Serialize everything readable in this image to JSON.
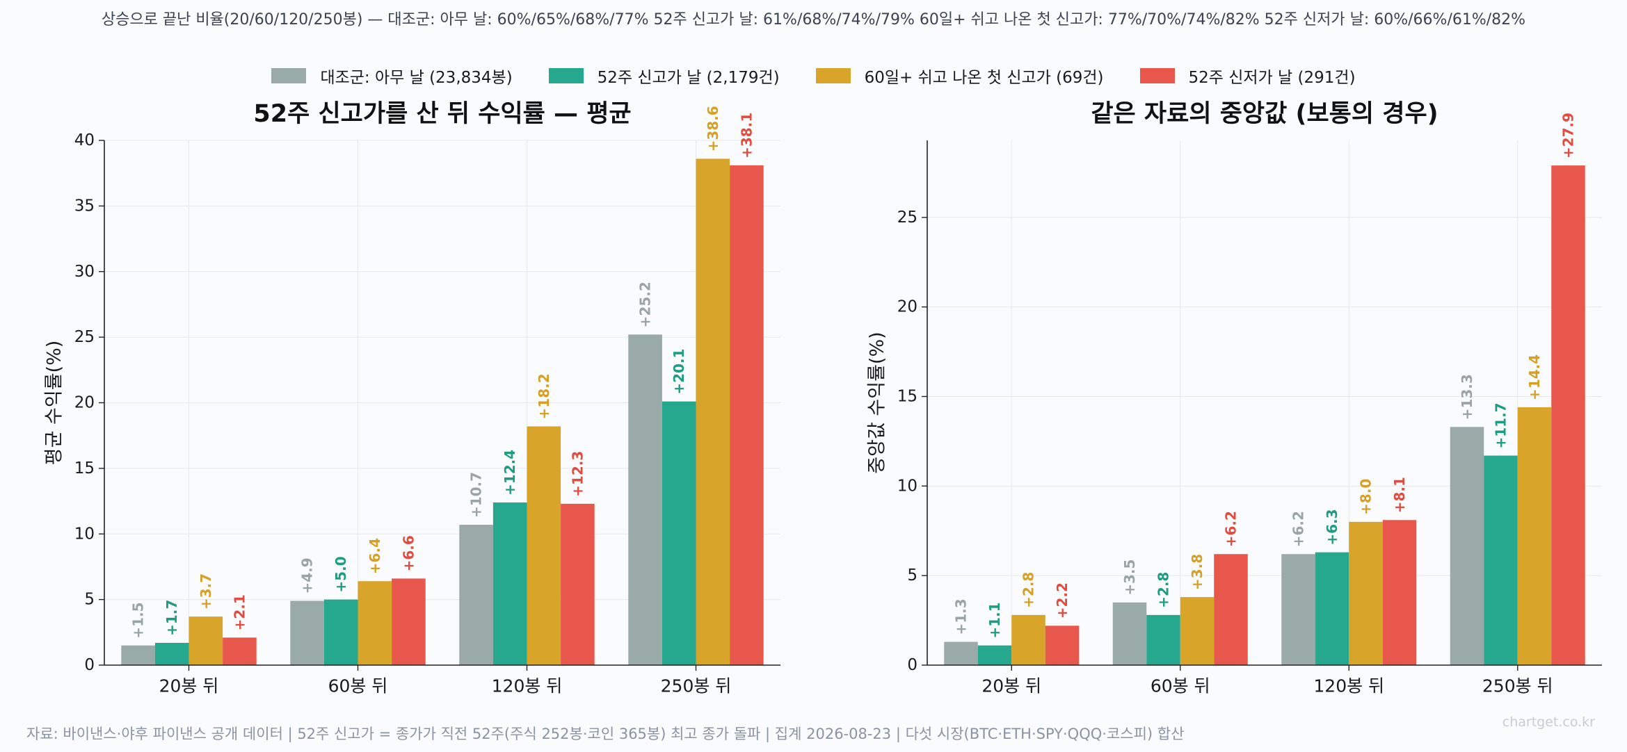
{
  "top_summary": "상승으로 끝난 비율(20/60/120/250봉) — 대조군: 아무 날: 60%/65%/68%/77%   52주 신고가 날: 61%/68%/74%/79%   60일+ 쉬고 나온 첫 신고가: 77%/70%/74%/82%   52주 신저가 날: 60%/66%/61%/82%",
  "legend": [
    {
      "label": "대조군: 아무 날 (23,834봉)",
      "color": "#9aaaa8"
    },
    {
      "label": "52주 신고가 날 (2,179건)",
      "color": "#26a88f"
    },
    {
      "label": "60일+ 쉬고 나온 첫 신고가 (69건)",
      "color": "#d8a52a"
    },
    {
      "label": "52주 신저가 날 (291건)",
      "color": "#e8574b"
    }
  ],
  "footer": "자료: 바이낸스·야후 파이낸스 공개 데이터 | 52주 신고가 = 종가가 직전 52주(주식 252봉·코인 365봉) 최고 종가 돌파 | 집계 2026-08-23 | 다섯 시장(BTC·ETH·SPY·QQQ·코스피) 합산",
  "watermark": "chartget.co.kr",
  "chart_data": [
    {
      "type": "bar",
      "title": "52주 신고가를 산 뒤 수익률 — 평균",
      "ylabel": "평균 수익률(%)",
      "xlabel": "",
      "categories": [
        "20봉 뒤",
        "60봉 뒤",
        "120봉 뒤",
        "250봉 뒤"
      ],
      "ylim": [
        0,
        40
      ],
      "yticks": [
        0,
        5,
        10,
        15,
        20,
        25,
        30,
        35,
        40
      ],
      "grid": true,
      "series": [
        {
          "name": "대조군: 아무 날",
          "color": "#9aaaa8",
          "values": [
            1.5,
            4.9,
            10.7,
            25.2
          ]
        },
        {
          "name": "52주 신고가 날",
          "color": "#26a88f",
          "values": [
            1.7,
            5.0,
            12.4,
            20.1
          ]
        },
        {
          "name": "60일+ 쉬고 나온 첫 신고가",
          "color": "#d8a52a",
          "values": [
            3.7,
            6.4,
            18.2,
            38.6
          ]
        },
        {
          "name": "52주 신저가 날",
          "color": "#e8574b",
          "values": [
            2.1,
            6.6,
            12.3,
            38.1
          ]
        }
      ],
      "label_colors": [
        "#9aa5a3",
        "#1e9c82",
        "#d5a024",
        "#e24b3f"
      ]
    },
    {
      "type": "bar",
      "title": "같은 자료의 중앙값 (보통의 경우)",
      "ylabel": "중앙값 수익률(%)",
      "xlabel": "",
      "categories": [
        "20봉 뒤",
        "60봉 뒤",
        "120봉 뒤",
        "250봉 뒤"
      ],
      "ylim": [
        0,
        29.3
      ],
      "yticks": [
        0,
        5,
        10,
        15,
        20,
        25
      ],
      "grid": true,
      "series": [
        {
          "name": "대조군: 아무 날",
          "color": "#9aaaa8",
          "values": [
            1.3,
            3.5,
            6.2,
            13.3
          ]
        },
        {
          "name": "52주 신고가 날",
          "color": "#26a88f",
          "values": [
            1.1,
            2.8,
            6.3,
            11.7
          ]
        },
        {
          "name": "60일+ 쉬고 나온 첫 신고가",
          "color": "#d8a52a",
          "values": [
            2.8,
            3.8,
            8.0,
            14.4
          ]
        },
        {
          "name": "52주 신저가 날",
          "color": "#e8574b",
          "values": [
            2.2,
            6.2,
            8.1,
            27.9
          ]
        }
      ],
      "label_colors": [
        "#9aa5a3",
        "#1e9c82",
        "#d5a024",
        "#e24b3f"
      ]
    }
  ]
}
